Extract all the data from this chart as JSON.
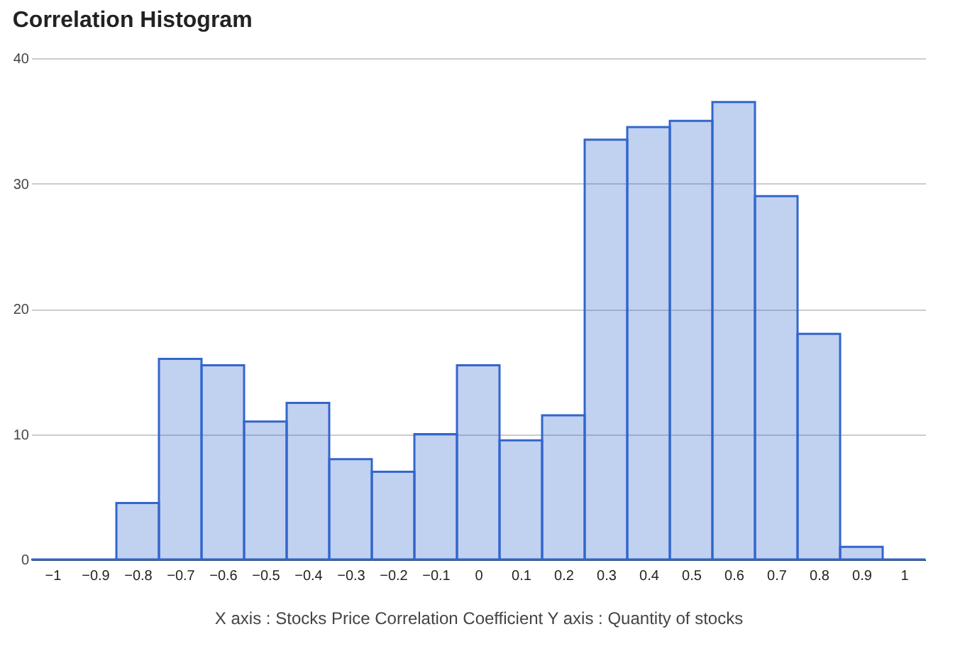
{
  "chart_data": {
    "type": "histogram",
    "title": "Correlation Histogram",
    "xlabel": "X axis : Stocks Price Correlation Coefficient  Y axis : Quantity of stocks",
    "bins": [
      -1.05,
      -0.95,
      -0.85,
      -0.75,
      -0.65,
      -0.55,
      -0.45,
      -0.35,
      -0.25,
      -0.15,
      -0.05,
      0.05,
      0.15,
      0.25,
      0.35,
      0.45,
      0.55,
      0.65,
      0.75,
      0.85,
      0.95,
      1.05
    ],
    "values": [
      0,
      0,
      4.5,
      16,
      15.5,
      11,
      12.5,
      8,
      7,
      10,
      15.5,
      9.5,
      11.5,
      33.5,
      34.5,
      35,
      36.5,
      29,
      18,
      1,
      0
    ],
    "color": "#3366cc",
    "xlim": [
      -1.05,
      1.05
    ],
    "xticks": [
      -1,
      -0.9,
      -0.8,
      -0.7,
      -0.6,
      -0.5,
      -0.4,
      -0.3,
      -0.2,
      -0.1,
      0,
      0.1,
      0.2,
      0.3,
      0.4,
      0.5,
      0.6,
      0.7,
      0.8,
      0.9,
      1
    ],
    "ylim": [
      0,
      40
    ],
    "yticks": [
      0,
      10,
      20,
      30,
      40
    ],
    "grid": "y"
  }
}
